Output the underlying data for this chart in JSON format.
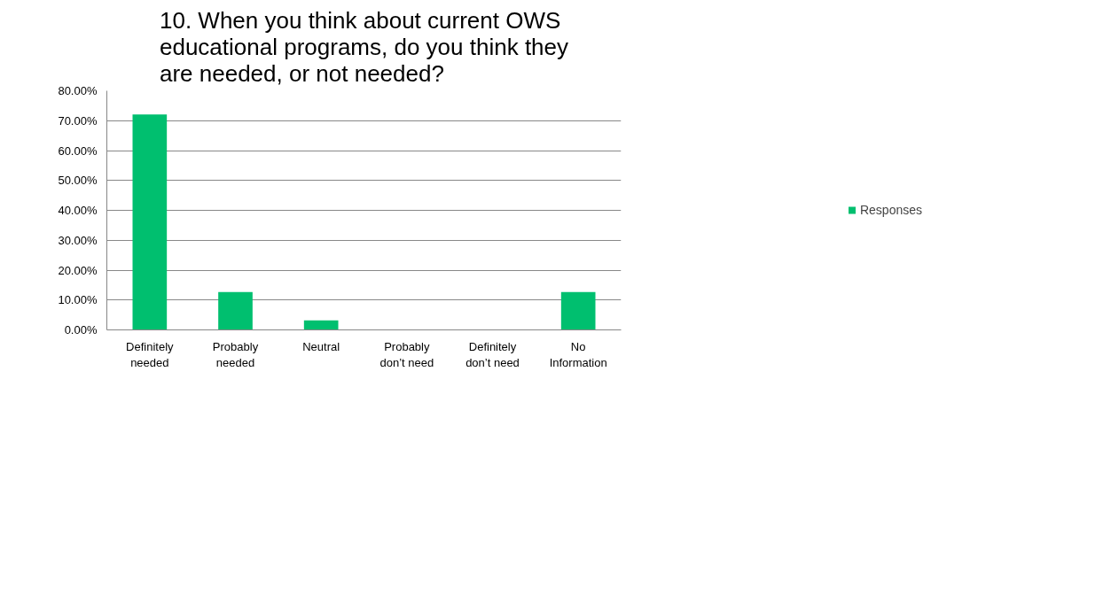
{
  "chart_data": {
    "type": "bar",
    "title": "10. When you think about current OWS educational programs, do you think they are needed, or not needed?",
    "categories": [
      "Definitely\nneeded",
      "Probably\nneeded",
      "Neutral",
      "Probably\ndon’t need",
      "Definitely\ndon’t need",
      "No\nInformation"
    ],
    "series": [
      {
        "name": "Responses",
        "color": "#00bf6f",
        "values": [
          72.1,
          12.7,
          3.2,
          0,
          0,
          12.7
        ]
      }
    ],
    "ylim": [
      0,
      80
    ],
    "yticks": [
      {
        "value": 0,
        "label": "0.00%"
      },
      {
        "value": 10,
        "label": "10.00%"
      },
      {
        "value": 20,
        "label": "20.00%"
      },
      {
        "value": 30,
        "label": "30.00%"
      },
      {
        "value": 40,
        "label": "40.00%"
      },
      {
        "value": 50,
        "label": "50.00%"
      },
      {
        "value": 60,
        "label": "60.00%"
      },
      {
        "value": 70,
        "label": "70.00%"
      },
      {
        "value": 80,
        "label": "80.00%"
      }
    ],
    "grid": "y",
    "legend": "right"
  }
}
